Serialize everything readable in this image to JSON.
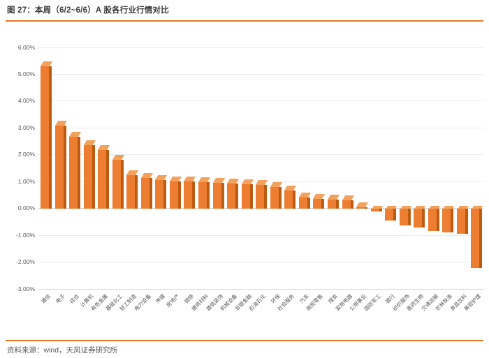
{
  "figure": {
    "title": "图 27：本周（6/2~6/6）A 股各行业行情对比",
    "source": "资料来源：wind，天风证券研究所",
    "accent_color": "#e87722"
  },
  "chart_data": {
    "type": "bar",
    "title": "本周（6/2~6/6）A 股各行业行情对比",
    "xlabel": "",
    "ylabel": "",
    "ylim": [
      -3,
      6
    ],
    "grid": true,
    "legend": "none",
    "yticks": [
      "6.00%",
      "5.00%",
      "4.00%",
      "3.00%",
      "2.00%",
      "1.00%",
      "0.00%",
      "-1.00%",
      "-2.00%",
      "-3.00%"
    ],
    "categories": [
      "通信",
      "电子",
      "综合",
      "计算机",
      "有色金属",
      "基础化工",
      "轻工制造",
      "电力设备",
      "传媒",
      "房地产",
      "钢铁",
      "建筑材料",
      "建筑装饰",
      "机械设备",
      "非银金融",
      "石油石化",
      "环保",
      "社会服务",
      "汽车",
      "商贸零售",
      "煤炭",
      "家用电器",
      "公用事业",
      "国防军工",
      "银行",
      "纺织服饰",
      "医药生物",
      "交通运输",
      "农林牧渔",
      "食品饮料",
      "美容护理"
    ],
    "values": [
      5.48,
      3.27,
      2.86,
      2.55,
      2.37,
      1.99,
      1.42,
      1.32,
      1.25,
      1.2,
      1.18,
      1.17,
      1.13,
      1.1,
      1.08,
      1.05,
      0.98,
      0.85,
      0.58,
      0.54,
      0.5,
      0.48,
      0.2,
      -0.12,
      -0.45,
      -0.63,
      -0.7,
      -0.83,
      -0.9,
      -0.95,
      -2.23
    ],
    "bar_color": "#ed7d31",
    "bar_side_color": "#be5b13",
    "bar_top_color": "#f2a25c",
    "style": "3d-column"
  }
}
